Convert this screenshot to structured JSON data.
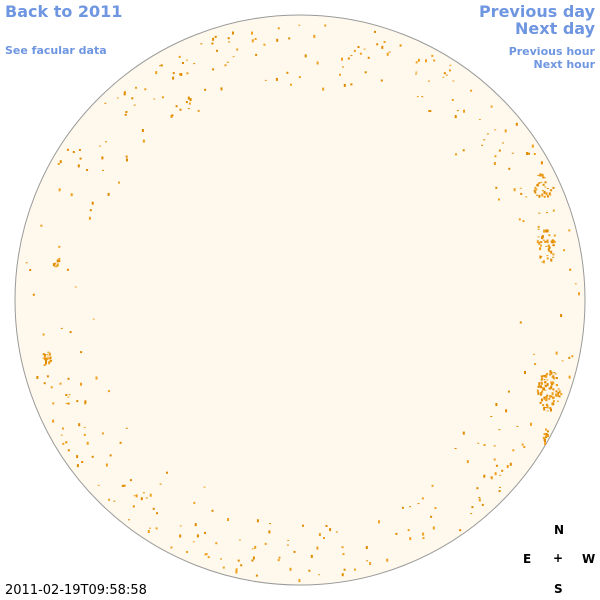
{
  "nav": {
    "back": "Back to 2011",
    "facular": "See facular data",
    "previous_day": "Previous day",
    "next_day": "Next day",
    "previous_hour": "Previous hour",
    "next_hour": "Next hour"
  },
  "timestamp": "2011-02-19T09:58:58",
  "compass": {
    "north": "N",
    "east": "E",
    "center": "+",
    "west": "W",
    "south": "S"
  }
}
